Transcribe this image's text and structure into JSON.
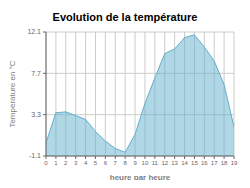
{
  "chart_data": {
    "type": "area",
    "title": "Evolution de la température",
    "x_label": "heure par heure",
    "y_label": "Température en °C",
    "x": [
      0,
      1,
      2,
      3,
      4,
      5,
      6,
      7,
      8,
      9,
      10,
      11,
      12,
      13,
      14,
      15,
      16,
      17,
      18,
      19
    ],
    "values": [
      0.3,
      3.5,
      3.6,
      3.2,
      2.8,
      1.5,
      0.5,
      -0.3,
      -0.7,
      1.2,
      4.5,
      7.2,
      9.8,
      10.3,
      11.5,
      11.8,
      10.5,
      9.0,
      6.5,
      2.0
    ],
    "color": "#60b0cc",
    "xlim": [
      0,
      19
    ],
    "xticks": [
      0,
      1,
      2,
      3,
      4,
      5,
      6,
      7,
      8,
      9,
      10,
      11,
      12,
      13,
      14,
      15,
      16,
      17,
      18,
      19
    ],
    "ylim": [
      -1.1,
      12.1
    ],
    "yticks": [
      -1.1,
      3.3,
      7.7,
      12.1
    ],
    "grid": true
  }
}
